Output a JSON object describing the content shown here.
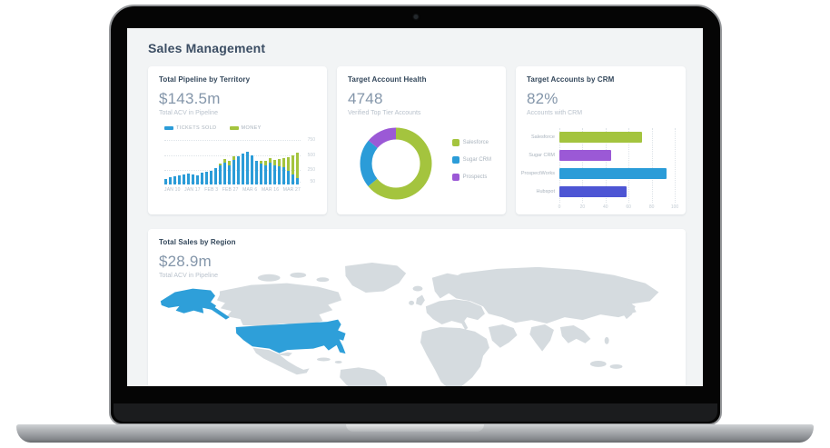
{
  "header": {
    "title": "Sales Management"
  },
  "colors": {
    "blue": "#2b9cd8",
    "green": "#a4c43e",
    "purple": "#9b59d6",
    "indigo": "#4d55d4",
    "map_land": "#d5dbdf",
    "map_highlight": "#2e9fd9"
  },
  "cards": {
    "pipeline": {
      "title": "Total Pipeline by Territory",
      "value": "$143.5m",
      "subtitle": "Total ACV in Pipeline",
      "chart": {
        "type": "bar",
        "stacked": true,
        "legend": [
          {
            "label": "TICKETS SOLD",
            "color_key": "blue"
          },
          {
            "label": "MONEY",
            "color_key": "green"
          }
        ],
        "y_ticks": [
          750,
          500,
          250,
          50
        ],
        "y_max": 800,
        "x_labels": [
          "JAN 10",
          "JAN 17",
          "FEB 3",
          "FEB 27",
          "MAR 6",
          "MAR 16",
          "MAR 27"
        ],
        "series": [
          {
            "name": "TICKETS SOLD",
            "color_key": "blue",
            "values": [
              100,
              120,
              140,
              160,
              175,
              190,
              175,
              160,
              200,
              215,
              235,
              270,
              320,
              370,
              320,
              420,
              470,
              520,
              560,
              490,
              400,
              355,
              325,
              375,
              325,
              305,
              285,
              235,
              175,
              105
            ]
          },
          {
            "name": "MONEY",
            "color_key": "green",
            "values": [
              0,
              0,
              0,
              0,
              0,
              0,
              0,
              0,
              0,
              0,
              0,
              0,
              40,
              60,
              80,
              60,
              0,
              0,
              0,
              0,
              0,
              50,
              70,
              70,
              90,
              120,
              160,
              230,
              320,
              430
            ]
          }
        ]
      }
    },
    "account_health": {
      "title": "Target Account Health",
      "value": "4748",
      "subtitle": "Verified Top Tier Accounts",
      "chart": {
        "type": "pie",
        "donut": true,
        "segments": [
          {
            "label": "Salesforce",
            "value": 64,
            "color_key": "green"
          },
          {
            "label": "Sugar CRM",
            "value": 22,
            "color_key": "blue"
          },
          {
            "label": "Prospects",
            "value": 14,
            "color_key": "purple"
          }
        ]
      }
    },
    "accounts_by_crm": {
      "title": "Target Accounts by CRM",
      "value": "82%",
      "subtitle": "Accounts with CRM",
      "chart": {
        "type": "bar",
        "orientation": "horizontal",
        "x_ticks": [
          "0",
          "20",
          "40",
          "60",
          "80",
          "100"
        ],
        "x_max": 100,
        "bars": [
          {
            "label": "Salesforce",
            "value": 72,
            "color_key": "green"
          },
          {
            "label": "Sugar CRM",
            "value": 45,
            "color_key": "purple"
          },
          {
            "label": "ProspectWorks",
            "value": 93,
            "color_key": "blue"
          },
          {
            "label": "Hubspot",
            "value": 58,
            "color_key": "indigo"
          }
        ]
      }
    },
    "sales_by_region": {
      "title": "Total Sales by Region",
      "value": "$28.9m",
      "subtitle": "Total ACV in Pipeline",
      "map": {
        "type": "choropleth",
        "highlighted_region": "United States"
      }
    }
  }
}
